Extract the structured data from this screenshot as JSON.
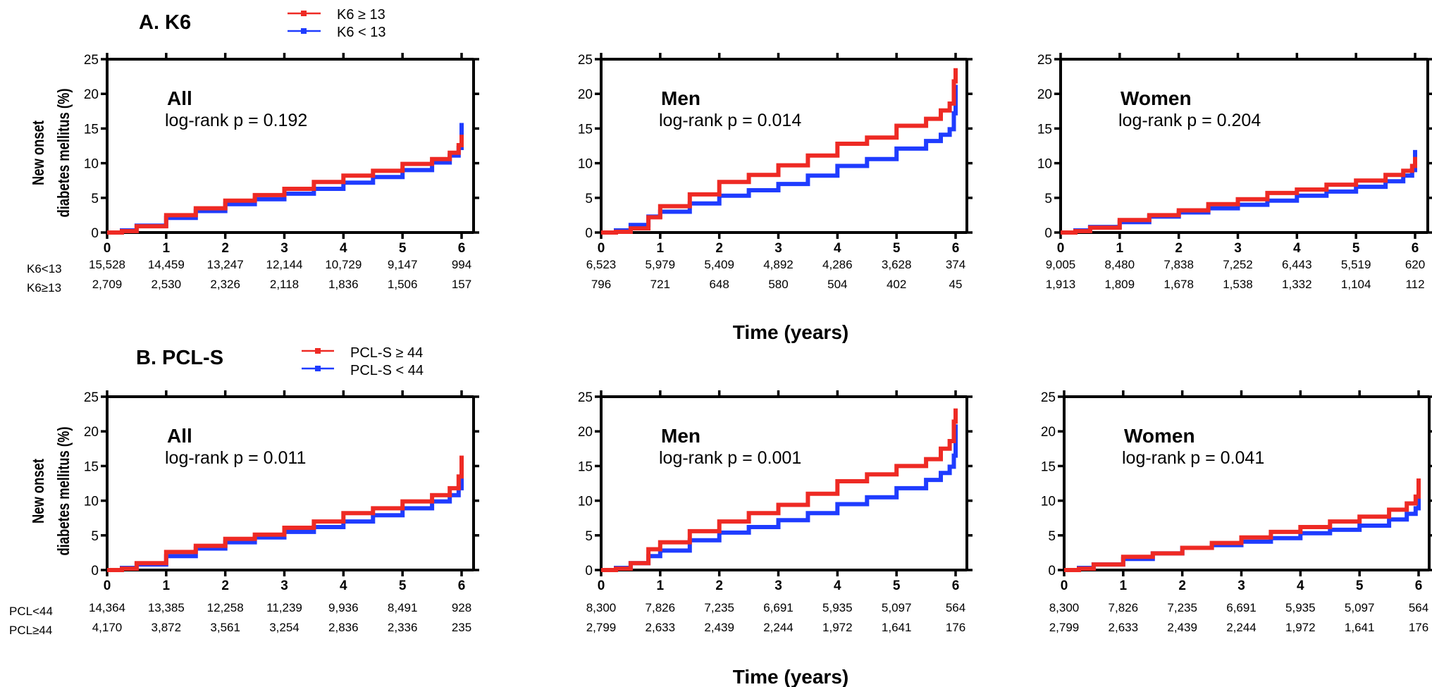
{
  "chart_data": [
    {
      "type": "line",
      "section_title": "A. K6",
      "legend": [
        {
          "label": "K6 ≥ 13",
          "color": "#ee2a24"
        },
        {
          "label": "K6 < 13",
          "color": "#1f3cff"
        }
      ],
      "ylabel_line1": "New onset",
      "ylabel_line2": "diabetes mellitus (%)",
      "xlabel": "Time (years)",
      "ylim": [
        0,
        25
      ],
      "xlim": [
        0,
        6
      ],
      "y_ticks": [
        0,
        5,
        10,
        15,
        20,
        25
      ],
      "x_ticks": [
        0,
        1,
        2,
        3,
        4,
        5,
        6
      ],
      "risk_row_labels": [
        "K6<13",
        "K6≥13"
      ],
      "panels": [
        {
          "name": "All",
          "annotation": "log-rank p = 0.192",
          "series": [
            {
              "name": "K6 ≥ 13",
              "color": "#ee2a24",
              "x": [
                0,
                0.25,
                0.5,
                1,
                1.5,
                2,
                2.5,
                3,
                3.5,
                4,
                4.5,
                5,
                5.5,
                5.8,
                5.95,
                6
              ],
              "y": [
                0,
                0.2,
                0.9,
                2.5,
                3.5,
                4.6,
                5.4,
                6.3,
                7.3,
                8.2,
                8.9,
                9.9,
                10.6,
                11.5,
                12.6,
                13.8
              ]
            },
            {
              "name": "K6 < 13",
              "color": "#1f3cff",
              "x": [
                0,
                0.25,
                0.5,
                1,
                1.5,
                2,
                2.5,
                3,
                3.5,
                4,
                4.5,
                5,
                5.5,
                5.8,
                5.95,
                6
              ],
              "y": [
                0,
                0.3,
                1.0,
                2.1,
                3.1,
                4.1,
                4.8,
                5.6,
                6.3,
                7.2,
                8.0,
                9.0,
                10.1,
                11.1,
                12.2,
                15.5
              ]
            }
          ],
          "at_risk": [
            [
              "15,528",
              "14,459",
              "13,247",
              "12,144",
              "10,729",
              "9,147",
              "994"
            ],
            [
              "2,709",
              "2,530",
              "2,326",
              "2,118",
              "1,836",
              "1,506",
              "157"
            ]
          ]
        },
        {
          "name": "Men",
          "annotation": "log-rank p = 0.014",
          "series": [
            {
              "name": "K6 ≥ 13",
              "color": "#ee2a24",
              "x": [
                0,
                0.25,
                0.5,
                0.8,
                1,
                1.5,
                2,
                2.5,
                3,
                3.5,
                4,
                4.5,
                5,
                5.5,
                5.75,
                5.9,
                5.97,
                6
              ],
              "y": [
                0,
                0.1,
                0.6,
                2.2,
                3.8,
                5.5,
                7.3,
                8.3,
                9.7,
                11.1,
                12.8,
                13.7,
                15.4,
                16.4,
                17.6,
                18.6,
                21.8,
                23.4
              ]
            },
            {
              "name": "K6 < 13",
              "color": "#1f3cff",
              "x": [
                0,
                0.25,
                0.5,
                0.8,
                1,
                1.5,
                2,
                2.5,
                3,
                3.5,
                4,
                4.5,
                5,
                5.5,
                5.75,
                5.9,
                5.97,
                6
              ],
              "y": [
                0,
                0.3,
                1.1,
                2.3,
                3.0,
                4.2,
                5.3,
                6.1,
                7.0,
                8.2,
                9.6,
                10.6,
                12.1,
                13.2,
                14.1,
                14.9,
                17.2,
                21.0
              ]
            }
          ],
          "at_risk": [
            [
              "6,523",
              "5,979",
              "5,409",
              "4,892",
              "4,286",
              "3,628",
              "374"
            ],
            [
              "796",
              "721",
              "648",
              "580",
              "504",
              "402",
              "45"
            ]
          ]
        },
        {
          "name": "Women",
          "annotation": "log-rank p = 0.204",
          "series": [
            {
              "name": "K6 ≥ 13",
              "color": "#ee2a24",
              "x": [
                0,
                0.25,
                0.5,
                1,
                1.5,
                2,
                2.5,
                3,
                3.5,
                4,
                4.5,
                5,
                5.5,
                5.8,
                5.95,
                6
              ],
              "y": [
                0,
                0.2,
                0.7,
                1.8,
                2.5,
                3.2,
                4.1,
                4.8,
                5.7,
                6.2,
                6.9,
                7.5,
                8.3,
                8.9,
                9.6,
                10.6
              ]
            },
            {
              "name": "K6 < 13",
              "color": "#1f3cff",
              "x": [
                0,
                0.25,
                0.5,
                1,
                1.5,
                2,
                2.5,
                3,
                3.5,
                4,
                4.5,
                5,
                5.5,
                5.8,
                5.95,
                6
              ],
              "y": [
                0,
                0.3,
                0.8,
                1.5,
                2.3,
                2.9,
                3.5,
                4.0,
                4.6,
                5.3,
                5.9,
                6.6,
                7.4,
                8.2,
                9.0,
                11.6
              ]
            }
          ],
          "at_risk": [
            [
              "9,005",
              "8,480",
              "7,838",
              "7,252",
              "6,443",
              "5,519",
              "620"
            ],
            [
              "1,913",
              "1,809",
              "1,678",
              "1,538",
              "1,332",
              "1,104",
              "112"
            ]
          ]
        }
      ]
    },
    {
      "type": "line",
      "section_title": "B. PCL-S",
      "legend": [
        {
          "label": "PCL-S ≥ 44",
          "color": "#ee2a24"
        },
        {
          "label": "PCL-S < 44",
          "color": "#1f3cff"
        }
      ],
      "ylabel_line1": "New onset",
      "ylabel_line2": "diabetes mellitus (%)",
      "xlabel": "Time (years)",
      "ylim": [
        0,
        25
      ],
      "xlim": [
        0,
        6
      ],
      "y_ticks": [
        0,
        5,
        10,
        15,
        20,
        25
      ],
      "x_ticks": [
        0,
        1,
        2,
        3,
        4,
        5,
        6
      ],
      "risk_row_labels": [
        "PCL<44",
        "PCL≥44"
      ],
      "panels": [
        {
          "name": "All",
          "annotation": "log-rank p = 0.011",
          "series": [
            {
              "name": "PCL-S ≥ 44",
              "color": "#ee2a24",
              "x": [
                0,
                0.25,
                0.5,
                1,
                1.5,
                2,
                2.5,
                3,
                3.5,
                4,
                4.5,
                5,
                5.5,
                5.8,
                5.95,
                6
              ],
              "y": [
                0,
                0.2,
                1.0,
                2.6,
                3.5,
                4.5,
                5.1,
                6.1,
                7.0,
                8.2,
                8.9,
                9.9,
                10.8,
                11.8,
                13.5,
                16.2
              ]
            },
            {
              "name": "PCL-S < 44",
              "color": "#1f3cff",
              "x": [
                0,
                0.25,
                0.5,
                1,
                1.5,
                2,
                2.5,
                3,
                3.5,
                4,
                4.5,
                5,
                5.5,
                5.8,
                5.95,
                6
              ],
              "y": [
                0,
                0.3,
                0.8,
                2.0,
                3.1,
                4.0,
                4.7,
                5.5,
                6.2,
                7.0,
                7.9,
                8.9,
                9.9,
                10.8,
                11.8,
                15.0
              ]
            }
          ],
          "at_risk": [
            [
              "14,364",
              "13,385",
              "12,258",
              "11,239",
              "9,936",
              "8,491",
              "928"
            ],
            [
              "4,170",
              "3,872",
              "3,561",
              "3,254",
              "2,836",
              "2,336",
              "235"
            ]
          ]
        },
        {
          "name": "Men",
          "annotation": "log-rank p = 0.001",
          "series": [
            {
              "name": "PCL-S ≥ 44",
              "color": "#ee2a24",
              "x": [
                0,
                0.25,
                0.5,
                0.8,
                1,
                1.5,
                2,
                2.5,
                3,
                3.5,
                4,
                4.5,
                5,
                5.5,
                5.75,
                5.9,
                5.97,
                6
              ],
              "y": [
                0,
                0.2,
                1.0,
                3.0,
                4.0,
                5.6,
                7.0,
                8.2,
                9.4,
                11.0,
                12.8,
                13.8,
                15.0,
                16.0,
                17.5,
                18.6,
                21.4,
                23.0
              ]
            },
            {
              "name": "PCL-S < 44",
              "color": "#1f3cff",
              "x": [
                0,
                0.25,
                0.5,
                0.8,
                1,
                1.5,
                2,
                2.5,
                3,
                3.5,
                4,
                4.5,
                5,
                5.5,
                5.75,
                5.9,
                5.97,
                6
              ],
              "y": [
                0,
                0.3,
                1.0,
                2.0,
                2.8,
                4.3,
                5.4,
                6.2,
                7.2,
                8.2,
                9.5,
                10.5,
                11.8,
                13.0,
                14.0,
                14.9,
                16.5,
                20.7
              ]
            }
          ],
          "at_risk": [
            [
              "8,300",
              "7,826",
              "7,235",
              "6,691",
              "5,935",
              "5,097",
              "564"
            ],
            [
              "2,799",
              "2,633",
              "2,439",
              "2,244",
              "1,972",
              "1,641",
              "176"
            ]
          ]
        },
        {
          "name": "Women",
          "annotation": "log-rank p = 0.041",
          "series": [
            {
              "name": "PCL-S ≥ 44",
              "color": "#ee2a24",
              "x": [
                0,
                0.25,
                0.5,
                1,
                1.5,
                2,
                2.5,
                3,
                3.5,
                4,
                4.5,
                5,
                5.5,
                5.8,
                5.95,
                6
              ],
              "y": [
                0,
                0.2,
                0.8,
                1.9,
                2.4,
                3.2,
                3.9,
                4.7,
                5.5,
                6.2,
                7.0,
                7.7,
                8.7,
                9.6,
                10.6,
                12.9
              ]
            },
            {
              "name": "PCL-S < 44",
              "color": "#1f3cff",
              "x": [
                0,
                0.25,
                0.5,
                1,
                1.5,
                2,
                2.5,
                3,
                3.5,
                4,
                4.5,
                5,
                5.5,
                5.8,
                5.95,
                6
              ],
              "y": [
                0,
                0.3,
                0.8,
                1.6,
                2.4,
                3.2,
                3.6,
                4.1,
                4.6,
                5.3,
                5.8,
                6.4,
                7.3,
                8.1,
                8.9,
                10.8
              ]
            }
          ],
          "at_risk": [
            [
              "8,300",
              "7,826",
              "7,235",
              "6,691",
              "5,935",
              "5,097",
              "564"
            ],
            [
              "2,799",
              "2,633",
              "2,439",
              "2,244",
              "1,972",
              "1,641",
              "176"
            ]
          ]
        }
      ]
    }
  ]
}
